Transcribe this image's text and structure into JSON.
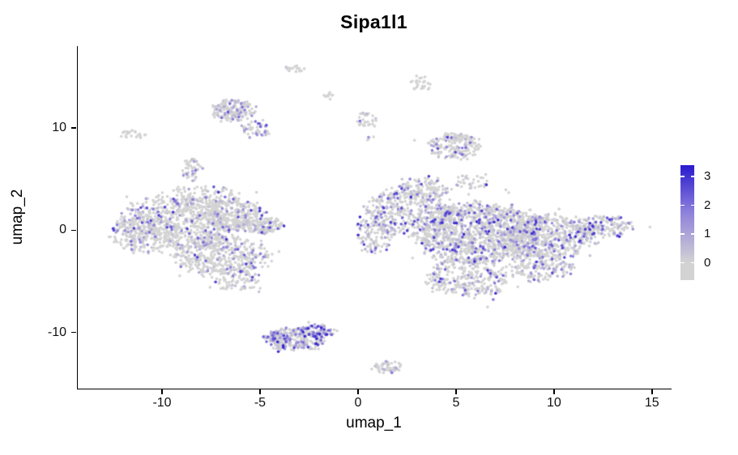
{
  "chart_data": {
    "type": "scatter",
    "title": "Sipa1l1",
    "xlabel": "umap_1",
    "ylabel": "umap_2",
    "xlim": [
      -14.3,
      16.0
    ],
    "ylim": [
      -15.5,
      18.0
    ],
    "x_ticks": [
      -10,
      -5,
      0,
      5,
      10,
      15
    ],
    "y_ticks": [
      -10,
      0,
      10
    ],
    "grid": false,
    "legend_position": "right",
    "point_radius_px": 1.8,
    "color_scale": {
      "low": "#D3D3D3",
      "mid": "#9184DC",
      "high": "#2A1BCE",
      "value_min": 0,
      "value_max": 3.4,
      "bar_range": [
        -0.6,
        3.4
      ],
      "ticks": [
        0,
        1,
        2,
        3
      ]
    },
    "seed": 42,
    "clusters": [
      {
        "name": "left-lobe",
        "expr": {
          "p": 0.16,
          "vmax": 3.0,
          "pow": 2.3
        },
        "blobs": [
          {
            "cx": -9.0,
            "cy": 0.8,
            "rx": 3.0,
            "ry": 2.6,
            "n": 700
          },
          {
            "cx": -10.8,
            "cy": -0.5,
            "rx": 1.8,
            "ry": 1.8,
            "n": 230
          },
          {
            "cx": -7.0,
            "cy": -2.5,
            "rx": 2.4,
            "ry": 2.0,
            "n": 430
          },
          {
            "cx": -6.2,
            "cy": -4.8,
            "rx": 1.2,
            "ry": 1.1,
            "n": 90
          },
          {
            "cx": -4.9,
            "cy": 0.5,
            "rx": 1.1,
            "ry": 0.8,
            "n": 140
          },
          {
            "cx": -6.5,
            "cy": 1.6,
            "rx": 1.6,
            "ry": 1.5,
            "n": 240
          },
          {
            "cx": -8.0,
            "cy": 3.4,
            "rx": 2.0,
            "ry": 1.0,
            "n": 90
          }
        ]
      },
      {
        "name": "top-left-island",
        "expr": {
          "p": 0.3,
          "vmax": 2.6,
          "pow": 2.0
        },
        "blobs": [
          {
            "cx": -6.4,
            "cy": 11.7,
            "rx": 1.15,
            "ry": 1.05,
            "n": 170
          },
          {
            "cx": -5.2,
            "cy": 9.8,
            "rx": 0.7,
            "ry": 0.9,
            "n": 45
          }
        ]
      },
      {
        "name": "far-left-speck",
        "expr": {
          "p": 0.05,
          "vmax": 1.2,
          "pow": 2.0
        },
        "blobs": [
          {
            "cx": -11.5,
            "cy": 9.4,
            "rx": 0.7,
            "ry": 0.4,
            "n": 22
          }
        ]
      },
      {
        "name": "small-column",
        "expr": {
          "p": 0.24,
          "vmax": 3.4,
          "pow": 2.8
        },
        "blobs": [
          {
            "cx": -8.45,
            "cy": 5.9,
            "rx": 0.5,
            "ry": 1.15,
            "n": 55
          }
        ]
      },
      {
        "name": "top-speck-1",
        "expr": {
          "p": 0.06,
          "vmax": 1.0,
          "pow": 2.0
        },
        "blobs": [
          {
            "cx": -3.2,
            "cy": 15.8,
            "rx": 0.55,
            "ry": 0.33,
            "n": 16
          }
        ]
      },
      {
        "name": "top-speck-2",
        "expr": {
          "p": 0.05,
          "vmax": 1.0,
          "pow": 2.0
        },
        "blobs": [
          {
            "cx": -1.5,
            "cy": 13.1,
            "rx": 0.4,
            "ry": 0.35,
            "n": 10
          }
        ]
      },
      {
        "name": "upper-middle-island",
        "expr": {
          "p": 0.15,
          "vmax": 2.2,
          "pow": 2.2
        },
        "blobs": [
          {
            "cx": 0.4,
            "cy": 10.8,
            "rx": 0.55,
            "ry": 0.7,
            "n": 32
          },
          {
            "cx": 0.6,
            "cy": 9.0,
            "rx": 0.3,
            "ry": 0.25,
            "n": 5
          }
        ]
      },
      {
        "name": "top-speck-3",
        "expr": {
          "p": 0.08,
          "vmax": 1.5,
          "pow": 2.2
        },
        "blobs": [
          {
            "cx": 3.2,
            "cy": 14.3,
            "rx": 0.5,
            "ry": 0.75,
            "n": 26
          }
        ]
      },
      {
        "name": "upper-right-island",
        "expr": {
          "p": 0.22,
          "vmax": 2.8,
          "pow": 2.2
        },
        "blobs": [
          {
            "cx": 4.9,
            "cy": 8.2,
            "rx": 1.35,
            "ry": 1.25,
            "n": 185
          }
        ]
      },
      {
        "name": "right-lobe",
        "expr": {
          "p": 0.27,
          "vmax": 3.2,
          "pow": 2.4
        },
        "blobs": [
          {
            "cx": 2.6,
            "cy": 1.8,
            "rx": 2.2,
            "ry": 2.4,
            "n": 420
          },
          {
            "cx": 6.2,
            "cy": -0.3,
            "rx": 3.2,
            "ry": 2.9,
            "n": 1250
          },
          {
            "cx": 9.8,
            "cy": -0.6,
            "rx": 2.3,
            "ry": 2.1,
            "n": 520
          },
          {
            "cx": 12.6,
            "cy": 0.3,
            "rx": 1.5,
            "ry": 1.1,
            "n": 170
          },
          {
            "cx": 5.6,
            "cy": -4.6,
            "rx": 2.1,
            "ry": 1.9,
            "n": 300
          },
          {
            "cx": 9.3,
            "cy": -3.6,
            "rx": 1.7,
            "ry": 1.3,
            "n": 180
          },
          {
            "cx": 3.4,
            "cy": 4.2,
            "rx": 1.3,
            "ry": 1.0,
            "n": 90
          },
          {
            "cx": 5.8,
            "cy": 4.7,
            "rx": 0.9,
            "ry": 0.7,
            "n": 35
          },
          {
            "cx": 0.8,
            "cy": -0.5,
            "rx": 0.9,
            "ry": 1.8,
            "n": 110
          }
        ]
      },
      {
        "name": "bottom-island",
        "expr": {
          "p": 0.45,
          "vmax": 3.3,
          "pow": 1.8
        },
        "blobs": [
          {
            "cx": -3.2,
            "cy": -10.7,
            "rx": 1.5,
            "ry": 1.15,
            "n": 255
          },
          {
            "cx": -2.3,
            "cy": -9.8,
            "rx": 0.8,
            "ry": 0.6,
            "n": 60
          },
          {
            "cx": -4.4,
            "cy": -10.4,
            "rx": 0.5,
            "ry": 0.5,
            "n": 30
          },
          {
            "cx": -1.6,
            "cy": -9.9,
            "rx": 0.45,
            "ry": 0.45,
            "n": 25
          }
        ]
      },
      {
        "name": "bottom-speck",
        "expr": {
          "p": 0.18,
          "vmax": 2.4,
          "pow": 2.4
        },
        "blobs": [
          {
            "cx": 1.55,
            "cy": -13.4,
            "rx": 0.75,
            "ry": 0.6,
            "n": 55
          }
        ]
      }
    ]
  }
}
